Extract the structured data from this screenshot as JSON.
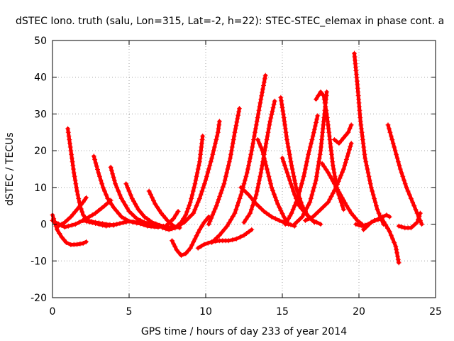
{
  "chart_data": {
    "type": "line",
    "title": "dSTEC Iono. truth (salu, Lon=315, Lat=-2, h=22): STEC-STEC_elemax in phase cont. a",
    "xlabel": "GPS time / hours of day 233 of year 2014",
    "ylabel": "dSTEC  / TECUs",
    "xlim": [
      0,
      25
    ],
    "ylim": [
      -20,
      50
    ],
    "xticks": [
      0,
      5,
      10,
      15,
      20,
      25
    ],
    "yticks": [
      -20,
      -10,
      0,
      10,
      20,
      30,
      40,
      50
    ],
    "grid": true,
    "marker": "plus",
    "color": "#ff0000",
    "series": [
      {
        "x": [
          0.0,
          0.3,
          0.6,
          0.9,
          1.2,
          1.6,
          2.0,
          2.2
        ],
        "y": [
          2.5,
          -1.5,
          -3.5,
          -5.0,
          -5.6,
          -5.5,
          -5.2,
          -4.8
        ]
      },
      {
        "x": [
          0.0,
          0.4,
          0.8,
          1.2,
          1.6,
          2.0,
          2.2
        ],
        "y": [
          1.0,
          -0.5,
          0.5,
          2.0,
          4.0,
          6.0,
          7.2
        ]
      },
      {
        "x": [
          1.0,
          1.2,
          1.4,
          1.6,
          1.8,
          2.0,
          2.3,
          2.8,
          3.5,
          4.0
        ],
        "y": [
          26.0,
          20.0,
          14.0,
          9.0,
          5.0,
          2.5,
          1.0,
          0.5,
          0.0,
          -0.3
        ]
      },
      {
        "x": [
          0.2,
          0.8,
          1.5,
          2.2,
          2.8,
          3.4,
          3.8
        ],
        "y": [
          0.5,
          -0.8,
          0.0,
          1.5,
          3.0,
          5.0,
          6.5
        ]
      },
      {
        "x": [
          2.7,
          3.0,
          3.3,
          3.6,
          4.0,
          4.5,
          5.0,
          5.5,
          6.0
        ],
        "y": [
          18.5,
          14.0,
          10.0,
          7.0,
          4.5,
          2.0,
          0.8,
          0.3,
          0.0
        ]
      },
      {
        "x": [
          3.8,
          4.1,
          4.5,
          5.0,
          5.5,
          6.0,
          6.5,
          7.0
        ],
        "y": [
          15.5,
          11.0,
          7.0,
          3.5,
          1.5,
          0.5,
          0.0,
          -0.4
        ]
      },
      {
        "x": [
          2.0,
          2.8,
          3.5,
          4.2,
          5.0,
          5.8,
          6.6,
          7.4,
          8.0
        ],
        "y": [
          1.0,
          0.2,
          -0.5,
          0.0,
          0.8,
          0.3,
          -0.5,
          -0.8,
          -0.9
        ]
      },
      {
        "x": [
          4.8,
          5.2,
          5.6,
          6.0,
          6.5,
          7.0,
          7.5,
          8.0
        ],
        "y": [
          11.0,
          7.0,
          4.0,
          2.0,
          0.5,
          -0.3,
          -0.8,
          -1.0
        ]
      },
      {
        "x": [
          6.3,
          6.7,
          7.1,
          7.5,
          7.9,
          8.3
        ],
        "y": [
          9.0,
          5.5,
          3.0,
          1.0,
          -0.5,
          -1.0
        ]
      },
      {
        "x": [
          5.5,
          6.2,
          6.9,
          7.4,
          7.9,
          8.2
        ],
        "y": [
          0.5,
          -0.5,
          -0.8,
          -0.5,
          1.5,
          3.5
        ]
      },
      {
        "x": [
          7.8,
          8.1,
          8.4,
          8.7,
          9.0,
          9.3,
          9.6,
          9.9,
          10.2
        ],
        "y": [
          -4.5,
          -7.0,
          -8.5,
          -8.0,
          -6.5,
          -4.0,
          -1.5,
          0.5,
          2.0
        ]
      },
      {
        "x": [
          7.2,
          7.6,
          8.0,
          8.4,
          8.7,
          9.0,
          9.3,
          9.6,
          9.8
        ],
        "y": [
          -1.0,
          -1.5,
          -1.0,
          0.5,
          2.5,
          6.0,
          11.0,
          17.0,
          24.0
        ]
      },
      {
        "x": [
          8.0,
          8.6,
          9.2,
          9.6,
          10.0,
          10.4,
          10.8,
          10.9
        ],
        "y": [
          -1.0,
          0.5,
          3.0,
          7.0,
          12.0,
          18.0,
          25.0,
          28.0
        ]
      },
      {
        "x": [
          9.5,
          9.9,
          10.4,
          10.9,
          11.5,
          12.0,
          12.5,
          13.0
        ],
        "y": [
          -6.5,
          -5.5,
          -4.8,
          -4.5,
          -4.5,
          -4.0,
          -3.0,
          -1.5
        ]
      },
      {
        "x": [
          10.4,
          10.9,
          11.4,
          11.9,
          12.3,
          12.7,
          13.0,
          13.3,
          13.6,
          13.9
        ],
        "y": [
          -5.0,
          -3.0,
          -0.5,
          3.0,
          8.0,
          14.0,
          20.0,
          27.0,
          34.0,
          40.5
        ]
      },
      {
        "x": [
          10.2,
          10.7,
          11.2,
          11.6,
          11.9,
          12.2
        ],
        "y": [
          0.0,
          5.0,
          11.0,
          18.0,
          25.0,
          31.5
        ]
      },
      {
        "x": [
          12.3,
          12.8,
          13.3,
          13.8,
          14.3,
          14.8,
          15.3,
          15.8
        ],
        "y": [
          10.0,
          8.0,
          5.5,
          3.5,
          2.0,
          1.0,
          0.2,
          -0.5
        ]
      },
      {
        "x": [
          12.5,
          12.9,
          13.3,
          13.6,
          13.9,
          14.2,
          14.5
        ],
        "y": [
          0.5,
          3.0,
          8.0,
          14.0,
          21.0,
          28.0,
          33.5
        ]
      },
      {
        "x": [
          13.4,
          13.7,
          14.0,
          14.3,
          14.7,
          15.1,
          15.4
        ],
        "y": [
          23.0,
          20.0,
          15.0,
          10.0,
          5.5,
          2.0,
          0.0
        ]
      },
      {
        "x": [
          14.9,
          15.1,
          15.3,
          15.6,
          15.9,
          16.3,
          16.7,
          17.1
        ],
        "y": [
          34.5,
          29.0,
          23.0,
          16.0,
          10.0,
          5.0,
          2.0,
          0.5
        ]
      },
      {
        "x": [
          15.2,
          15.6,
          16.0,
          16.4,
          16.7,
          17.0,
          17.3
        ],
        "y": [
          0.0,
          3.0,
          7.0,
          13.0,
          19.0,
          24.0,
          29.5
        ]
      },
      {
        "x": [
          15.0,
          15.4,
          15.8,
          16.1,
          16.5,
          17.0,
          17.5
        ],
        "y": [
          18.0,
          13.0,
          8.0,
          5.0,
          3.0,
          1.0,
          0.0
        ]
      },
      {
        "x": [
          15.8,
          16.3,
          16.8,
          17.2,
          17.5,
          17.7,
          17.9
        ],
        "y": [
          0.0,
          2.0,
          6.0,
          12.0,
          20.0,
          28.0,
          36.0
        ]
      },
      {
        "x": [
          17.2,
          17.5,
          17.7,
          17.9,
          18.1,
          18.3,
          18.6,
          19.0
        ],
        "y": [
          34.0,
          36.0,
          35.0,
          30.0,
          23.0,
          16.0,
          9.0,
          4.0
        ]
      },
      {
        "x": [
          17.6,
          18.0,
          18.4,
          18.8,
          19.2,
          19.5,
          19.9,
          20.2
        ],
        "y": [
          16.5,
          14.0,
          11.0,
          8.0,
          5.0,
          3.0,
          1.0,
          0.0
        ]
      },
      {
        "x": [
          18.4,
          18.7,
          19.0,
          19.3,
          19.5
        ],
        "y": [
          23.0,
          22.0,
          23.5,
          25.0,
          27.0
        ]
      },
      {
        "x": [
          16.5,
          17.0,
          17.5,
          18.0,
          18.5,
          19.0,
          19.5
        ],
        "y": [
          1.0,
          2.0,
          4.0,
          6.0,
          10.0,
          15.0,
          22.0
        ]
      },
      {
        "x": [
          19.7,
          19.9,
          20.1,
          20.4,
          20.8,
          21.2,
          21.6
        ],
        "y": [
          46.5,
          38.0,
          28.0,
          18.0,
          10.0,
          4.0,
          0.0
        ]
      },
      {
        "x": [
          19.8,
          20.2,
          20.6,
          21.0,
          21.5,
          22.0,
          22.4,
          22.6
        ],
        "y": [
          0.0,
          -0.5,
          0.0,
          1.0,
          1.5,
          -2.0,
          -6.0,
          -10.5
        ]
      },
      {
        "x": [
          20.3,
          20.8,
          21.3,
          21.8,
          22.0
        ],
        "y": [
          -1.5,
          0.5,
          1.5,
          2.5,
          2.0
        ]
      },
      {
        "x": [
          21.9,
          22.3,
          22.7,
          23.1,
          23.5,
          23.9,
          24.1
        ],
        "y": [
          27.0,
          21.0,
          15.0,
          10.0,
          6.0,
          2.0,
          0.0
        ]
      },
      {
        "x": [
          22.6,
          23.0,
          23.4,
          23.8,
          24.0
        ],
        "y": [
          -0.5,
          -1.0,
          -1.0,
          0.5,
          3.0
        ]
      }
    ]
  }
}
